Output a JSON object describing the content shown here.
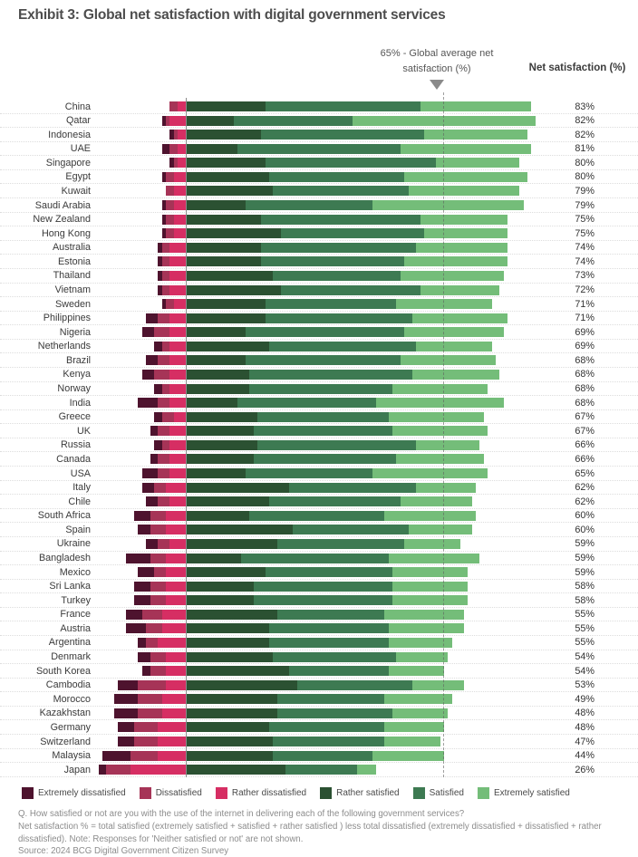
{
  "title": "Exhibit 3: Global net satisfaction with digital government services",
  "annotation": {
    "text": "65% - Global average net satisfaction (%)",
    "marker": "triangle-down-icon"
  },
  "net_header": "Net satisfaction (%)",
  "segment_colors": {
    "extremely_dissatisfied": "#4e132e",
    "dissatisfied": "#a63457",
    "rather_dissatisfied": "#d62e63",
    "rather_satisfied": "#2b5132",
    "satisfied": "#3d7a52",
    "extremely_satisfied": "#74bd79"
  },
  "axis_colors": {
    "zero_line": "#8a8a8a",
    "average_line": "#5f5f5f"
  },
  "legend": [
    {
      "key": "extremely_dissatisfied",
      "label": "Extremely dissatisfied"
    },
    {
      "key": "dissatisfied",
      "label": "Dissatisfied"
    },
    {
      "key": "rather_dissatisfied",
      "label": "Rather dissatisfied"
    },
    {
      "key": "rather_satisfied",
      "label": "Rather satisfied"
    },
    {
      "key": "satisfied",
      "label": "Satisfied"
    },
    {
      "key": "extremely_satisfied",
      "label": "Extremely satisfied"
    }
  ],
  "chart_data": {
    "type": "bar",
    "subtype": "horizontal-diverging-stacked",
    "title": "Global net satisfaction with digital government services",
    "unit": "%",
    "global_average_pct": 65,
    "dissatisfied_order": [
      "extremely_dissatisfied",
      "dissatisfied",
      "rather_dissatisfied"
    ],
    "satisfied_order": [
      "rather_satisfied",
      "satisfied",
      "extremely_satisfied"
    ],
    "value_column": "Net satisfaction (%)",
    "countries": [
      {
        "name": "China",
        "net": 83,
        "net_label": "83%",
        "extremely_dissatisfied": 0,
        "dissatisfied": 2,
        "rather_dissatisfied": 2,
        "rather_satisfied": 20,
        "satisfied": 39,
        "extremely_satisfied": 28
      },
      {
        "name": "Qatar",
        "net": 82,
        "net_label": "82%",
        "extremely_dissatisfied": 1,
        "dissatisfied": 1,
        "rather_dissatisfied": 4,
        "rather_satisfied": 12,
        "satisfied": 30,
        "extremely_satisfied": 46
      },
      {
        "name": "Indonesia",
        "net": 82,
        "net_label": "82%",
        "extremely_dissatisfied": 1,
        "dissatisfied": 1,
        "rather_dissatisfied": 2,
        "rather_satisfied": 19,
        "satisfied": 41,
        "extremely_satisfied": 26
      },
      {
        "name": "UAE",
        "net": 81,
        "net_label": "81%",
        "extremely_dissatisfied": 2,
        "dissatisfied": 2,
        "rather_dissatisfied": 2,
        "rather_satisfied": 13,
        "satisfied": 41,
        "extremely_satisfied": 33
      },
      {
        "name": "Singapore",
        "net": 80,
        "net_label": "80%",
        "extremely_dissatisfied": 1,
        "dissatisfied": 1,
        "rather_dissatisfied": 2,
        "rather_satisfied": 20,
        "satisfied": 43,
        "extremely_satisfied": 21
      },
      {
        "name": "Egypt",
        "net": 80,
        "net_label": "80%",
        "extremely_dissatisfied": 1,
        "dissatisfied": 2,
        "rather_dissatisfied": 3,
        "rather_satisfied": 21,
        "satisfied": 34,
        "extremely_satisfied": 31
      },
      {
        "name": "Kuwait",
        "net": 79,
        "net_label": "79%",
        "extremely_dissatisfied": 0,
        "dissatisfied": 2,
        "rather_dissatisfied": 3,
        "rather_satisfied": 22,
        "satisfied": 34,
        "extremely_satisfied": 28
      },
      {
        "name": "Saudi Arabia",
        "net": 79,
        "net_label": "79%",
        "extremely_dissatisfied": 1,
        "dissatisfied": 2,
        "rather_dissatisfied": 3,
        "rather_satisfied": 15,
        "satisfied": 32,
        "extremely_satisfied": 38
      },
      {
        "name": "New Zealand",
        "net": 75,
        "net_label": "75%",
        "extremely_dissatisfied": 1,
        "dissatisfied": 2,
        "rather_dissatisfied": 3,
        "rather_satisfied": 19,
        "satisfied": 40,
        "extremely_satisfied": 22
      },
      {
        "name": "Hong Kong",
        "net": 75,
        "net_label": "75%",
        "extremely_dissatisfied": 1,
        "dissatisfied": 2,
        "rather_dissatisfied": 3,
        "rather_satisfied": 24,
        "satisfied": 36,
        "extremely_satisfied": 21
      },
      {
        "name": "Australia",
        "net": 74,
        "net_label": "74%",
        "extremely_dissatisfied": 1,
        "dissatisfied": 2,
        "rather_dissatisfied": 4,
        "rather_satisfied": 19,
        "satisfied": 39,
        "extremely_satisfied": 23
      },
      {
        "name": "Estonia",
        "net": 74,
        "net_label": "74%",
        "extremely_dissatisfied": 1,
        "dissatisfied": 2,
        "rather_dissatisfied": 4,
        "rather_satisfied": 19,
        "satisfied": 36,
        "extremely_satisfied": 26
      },
      {
        "name": "Thailand",
        "net": 73,
        "net_label": "73%",
        "extremely_dissatisfied": 1,
        "dissatisfied": 2,
        "rather_dissatisfied": 4,
        "rather_satisfied": 22,
        "satisfied": 32,
        "extremely_satisfied": 26
      },
      {
        "name": "Vietnam",
        "net": 72,
        "net_label": "72%",
        "extremely_dissatisfied": 1,
        "dissatisfied": 2,
        "rather_dissatisfied": 4,
        "rather_satisfied": 24,
        "satisfied": 35,
        "extremely_satisfied": 20
      },
      {
        "name": "Sweden",
        "net": 71,
        "net_label": "71%",
        "extremely_dissatisfied": 1,
        "dissatisfied": 2,
        "rather_dissatisfied": 3,
        "rather_satisfied": 20,
        "satisfied": 33,
        "extremely_satisfied": 24
      },
      {
        "name": "Philippines",
        "net": 71,
        "net_label": "71%",
        "extremely_dissatisfied": 3,
        "dissatisfied": 3,
        "rather_dissatisfied": 4,
        "rather_satisfied": 20,
        "satisfied": 37,
        "extremely_satisfied": 24
      },
      {
        "name": "Nigeria",
        "net": 69,
        "net_label": "69%",
        "extremely_dissatisfied": 3,
        "dissatisfied": 4,
        "rather_dissatisfied": 4,
        "rather_satisfied": 15,
        "satisfied": 40,
        "extremely_satisfied": 25
      },
      {
        "name": "Netherlands",
        "net": 69,
        "net_label": "69%",
        "extremely_dissatisfied": 2,
        "dissatisfied": 2,
        "rather_dissatisfied": 4,
        "rather_satisfied": 21,
        "satisfied": 37,
        "extremely_satisfied": 19
      },
      {
        "name": "Brazil",
        "net": 68,
        "net_label": "68%",
        "extremely_dissatisfied": 3,
        "dissatisfied": 3,
        "rather_dissatisfied": 4,
        "rather_satisfied": 15,
        "satisfied": 39,
        "extremely_satisfied": 24
      },
      {
        "name": "Kenya",
        "net": 68,
        "net_label": "68%",
        "extremely_dissatisfied": 3,
        "dissatisfied": 4,
        "rather_dissatisfied": 4,
        "rather_satisfied": 16,
        "satisfied": 41,
        "extremely_satisfied": 22
      },
      {
        "name": "Norway",
        "net": 68,
        "net_label": "68%",
        "extremely_dissatisfied": 2,
        "dissatisfied": 2,
        "rather_dissatisfied": 4,
        "rather_satisfied": 16,
        "satisfied": 36,
        "extremely_satisfied": 24
      },
      {
        "name": "India",
        "net": 68,
        "net_label": "68%",
        "extremely_dissatisfied": 5,
        "dissatisfied": 3,
        "rather_dissatisfied": 4,
        "rather_satisfied": 13,
        "satisfied": 35,
        "extremely_satisfied": 32
      },
      {
        "name": "Greece",
        "net": 67,
        "net_label": "67%",
        "extremely_dissatisfied": 2,
        "dissatisfied": 3,
        "rather_dissatisfied": 3,
        "rather_satisfied": 18,
        "satisfied": 33,
        "extremely_satisfied": 24
      },
      {
        "name": "UK",
        "net": 67,
        "net_label": "67%",
        "extremely_dissatisfied": 2,
        "dissatisfied": 3,
        "rather_dissatisfied": 4,
        "rather_satisfied": 17,
        "satisfied": 35,
        "extremely_satisfied": 24
      },
      {
        "name": "Russia",
        "net": 66,
        "net_label": "66%",
        "extremely_dissatisfied": 2,
        "dissatisfied": 2,
        "rather_dissatisfied": 4,
        "rather_satisfied": 18,
        "satisfied": 40,
        "extremely_satisfied": 16
      },
      {
        "name": "Canada",
        "net": 66,
        "net_label": "66%",
        "extremely_dissatisfied": 2,
        "dissatisfied": 3,
        "rather_dissatisfied": 4,
        "rather_satisfied": 17,
        "satisfied": 36,
        "extremely_satisfied": 22
      },
      {
        "name": "USA",
        "net": 65,
        "net_label": "65%",
        "extremely_dissatisfied": 4,
        "dissatisfied": 3,
        "rather_dissatisfied": 4,
        "rather_satisfied": 15,
        "satisfied": 32,
        "extremely_satisfied": 29
      },
      {
        "name": "Italy",
        "net": 62,
        "net_label": "62%",
        "extremely_dissatisfied": 3,
        "dissatisfied": 3,
        "rather_dissatisfied": 5,
        "rather_satisfied": 26,
        "satisfied": 32,
        "extremely_satisfied": 15
      },
      {
        "name": "Chile",
        "net": 62,
        "net_label": "62%",
        "extremely_dissatisfied": 3,
        "dissatisfied": 3,
        "rather_dissatisfied": 4,
        "rather_satisfied": 21,
        "satisfied": 33,
        "extremely_satisfied": 18
      },
      {
        "name": "South Africa",
        "net": 60,
        "net_label": "60%",
        "extremely_dissatisfied": 4,
        "dissatisfied": 4,
        "rather_dissatisfied": 5,
        "rather_satisfied": 16,
        "satisfied": 34,
        "extremely_satisfied": 23
      },
      {
        "name": "Spain",
        "net": 60,
        "net_label": "60%",
        "extremely_dissatisfied": 3,
        "dissatisfied": 4,
        "rather_dissatisfied": 5,
        "rather_satisfied": 27,
        "satisfied": 29,
        "extremely_satisfied": 16
      },
      {
        "name": "Ukraine",
        "net": 59,
        "net_label": "59%",
        "extremely_dissatisfied": 3,
        "dissatisfied": 3,
        "rather_dissatisfied": 4,
        "rather_satisfied": 23,
        "satisfied": 32,
        "extremely_satisfied": 14
      },
      {
        "name": "Bangladesh",
        "net": 59,
        "net_label": "59%",
        "extremely_dissatisfied": 6,
        "dissatisfied": 4,
        "rather_dissatisfied": 5,
        "rather_satisfied": 14,
        "satisfied": 37,
        "extremely_satisfied": 23
      },
      {
        "name": "Mexico",
        "net": 59,
        "net_label": "59%",
        "extremely_dissatisfied": 4,
        "dissatisfied": 3,
        "rather_dissatisfied": 5,
        "rather_satisfied": 20,
        "satisfied": 32,
        "extremely_satisfied": 19
      },
      {
        "name": "Sri Lanka",
        "net": 58,
        "net_label": "58%",
        "extremely_dissatisfied": 4,
        "dissatisfied": 4,
        "rather_dissatisfied": 5,
        "rather_satisfied": 17,
        "satisfied": 35,
        "extremely_satisfied": 19
      },
      {
        "name": "Turkey",
        "net": 58,
        "net_label": "58%",
        "extremely_dissatisfied": 4,
        "dissatisfied": 4,
        "rather_dissatisfied": 5,
        "rather_satisfied": 17,
        "satisfied": 35,
        "extremely_satisfied": 19
      },
      {
        "name": "France",
        "net": 55,
        "net_label": "55%",
        "extremely_dissatisfied": 4,
        "dissatisfied": 5,
        "rather_dissatisfied": 6,
        "rather_satisfied": 23,
        "satisfied": 27,
        "extremely_satisfied": 20
      },
      {
        "name": "Austria",
        "net": 55,
        "net_label": "55%",
        "extremely_dissatisfied": 5,
        "dissatisfied": 4,
        "rather_dissatisfied": 6,
        "rather_satisfied": 21,
        "satisfied": 30,
        "extremely_satisfied": 19
      },
      {
        "name": "Argentina",
        "net": 55,
        "net_label": "55%",
        "extremely_dissatisfied": 2,
        "dissatisfied": 3,
        "rather_dissatisfied": 7,
        "rather_satisfied": 21,
        "satisfied": 30,
        "extremely_satisfied": 16
      },
      {
        "name": "Denmark",
        "net": 54,
        "net_label": "54%",
        "extremely_dissatisfied": 3,
        "dissatisfied": 4,
        "rather_dissatisfied": 5,
        "rather_satisfied": 22,
        "satisfied": 31,
        "extremely_satisfied": 13
      },
      {
        "name": "South Korea",
        "net": 54,
        "net_label": "54%",
        "extremely_dissatisfied": 2,
        "dissatisfied": 4,
        "rather_dissatisfied": 5,
        "rather_satisfied": 26,
        "satisfied": 25,
        "extremely_satisfied": 14
      },
      {
        "name": "Cambodia",
        "net": 53,
        "net_label": "53%",
        "extremely_dissatisfied": 5,
        "dissatisfied": 7,
        "rather_dissatisfied": 5,
        "rather_satisfied": 28,
        "satisfied": 29,
        "extremely_satisfied": 13
      },
      {
        "name": "Morocco",
        "net": 49,
        "net_label": "49%",
        "extremely_dissatisfied": 6,
        "dissatisfied": 6,
        "rather_dissatisfied": 6,
        "rather_satisfied": 23,
        "satisfied": 27,
        "extremely_satisfied": 17
      },
      {
        "name": "Kazakhstan",
        "net": 48,
        "net_label": "48%",
        "extremely_dissatisfied": 6,
        "dissatisfied": 6,
        "rather_dissatisfied": 6,
        "rather_satisfied": 23,
        "satisfied": 29,
        "extremely_satisfied": 14
      },
      {
        "name": "Germany",
        "net": 48,
        "net_label": "48%",
        "extremely_dissatisfied": 4,
        "dissatisfied": 6,
        "rather_dissatisfied": 7,
        "rather_satisfied": 21,
        "satisfied": 29,
        "extremely_satisfied": 15
      },
      {
        "name": "Switzerland",
        "net": 47,
        "net_label": "47%",
        "extremely_dissatisfied": 4,
        "dissatisfied": 6,
        "rather_dissatisfied": 7,
        "rather_satisfied": 22,
        "satisfied": 28,
        "extremely_satisfied": 14
      },
      {
        "name": "Malaysia",
        "net": 44,
        "net_label": "44%",
        "extremely_dissatisfied": 7,
        "dissatisfied": 7,
        "rather_dissatisfied": 7,
        "rather_satisfied": 22,
        "satisfied": 25,
        "extremely_satisfied": 18
      },
      {
        "name": "Japan",
        "net": 26,
        "net_label": "26%",
        "extremely_dissatisfied": 2,
        "dissatisfied": 6,
        "rather_dissatisfied": 14,
        "rather_satisfied": 25,
        "satisfied": 18,
        "extremely_satisfied": 5
      }
    ]
  },
  "footnotes": [
    "Q. How satisfied or not are you with the use of the internet in delivering each of the following government services?",
    "Net satisfaction % = total satisfied (extremely satisfied + satisfied + rather satisfied ) less total dissatisfied (extremely dissatisfied + dissatisfied + rather dissatisfied). Note: Responses for 'Neither satisfied or not' are not shown.",
    "Source: 2024 BCG Digital Government Citizen Survey"
  ]
}
